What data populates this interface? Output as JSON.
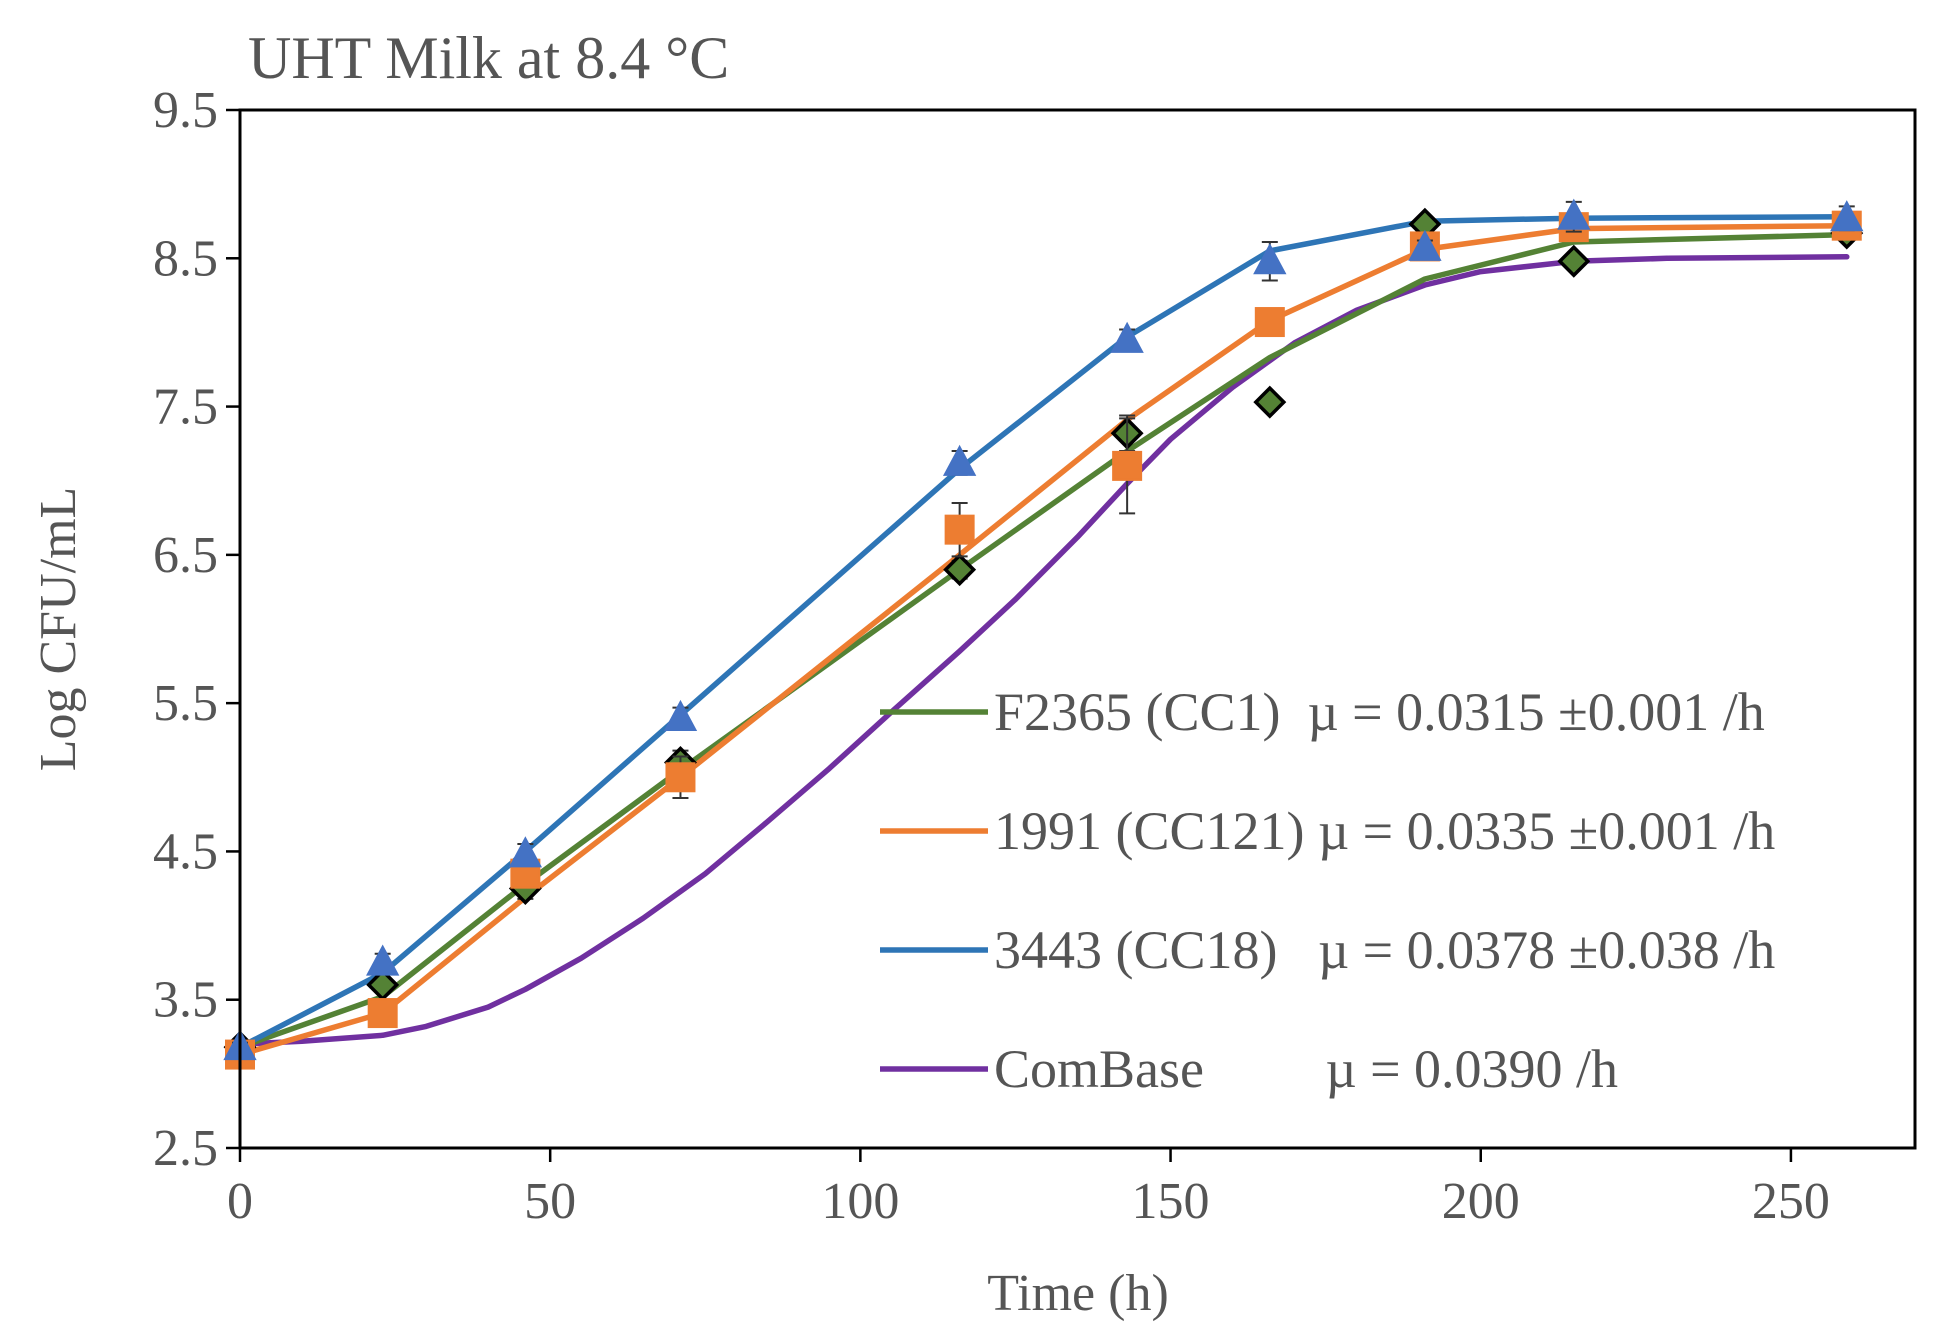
{
  "chart_data": {
    "type": "line",
    "title": "UHT Milk  at 8.4 °C",
    "xlabel": "Time (h)",
    "ylabel": "Log CFU/mL",
    "xlim": [
      0,
      270
    ],
    "ylim": [
      2.5,
      9.5
    ],
    "xticks": [
      "0",
      "50",
      "100",
      "150",
      "200",
      "250"
    ],
    "yticks": [
      "2.5",
      "3.5",
      "4.5",
      "5.5",
      "6.5",
      "7.5",
      "8.5",
      "9.5"
    ],
    "legend_position": "lower-right",
    "series": [
      {
        "name": "F2365 (CC1)",
        "legend_label": "F2365 (CC1)  µ = 0.0315 ±0.001 /h",
        "color": "#548235",
        "marker": "diamond",
        "marker_fill": "#548235",
        "marker_stroke": "#000000",
        "observed": {
          "x": [
            0,
            23,
            46,
            71,
            116,
            143,
            166,
            191,
            215,
            259
          ],
          "y": [
            3.18,
            3.6,
            4.25,
            5.1,
            6.4,
            7.32,
            7.53,
            8.73,
            8.48,
            8.67
          ],
          "err": [
            0.03,
            0.05,
            0.07,
            0.08,
            0.06,
            0.12,
            0.04,
            0.04,
            0.04,
            0.04
          ]
        },
        "fit": {
          "x": [
            0,
            23,
            46,
            71,
            116,
            143,
            166,
            191,
            215,
            259
          ],
          "y": [
            3.18,
            3.52,
            4.28,
            5.05,
            6.4,
            7.2,
            7.83,
            8.36,
            8.61,
            8.66
          ]
        }
      },
      {
        "name": "1991 (CC121)",
        "legend_label": "1991 (CC121) µ = 0.0335 ±0.001 /h",
        "color": "#ED7D31",
        "marker": "square",
        "marker_fill": "#ED7D31",
        "marker_stroke": "#ED7D31",
        "observed": {
          "x": [
            0,
            23,
            46,
            71,
            116,
            143,
            166,
            191,
            215,
            259
          ],
          "y": [
            3.13,
            3.41,
            4.35,
            5.0,
            6.67,
            7.1,
            8.07,
            8.58,
            8.71,
            8.72
          ],
          "err": [
            0.03,
            0.06,
            0.08,
            0.14,
            0.18,
            0.32,
            0.06,
            0.05,
            0.05,
            0.05
          ]
        },
        "fit": {
          "x": [
            0,
            23,
            46,
            71,
            116,
            143,
            166,
            191,
            215,
            259
          ],
          "y": [
            3.13,
            3.41,
            4.19,
            5.0,
            6.5,
            7.41,
            8.08,
            8.56,
            8.7,
            8.72
          ]
        }
      },
      {
        "name": "3443 (CC18)",
        "legend_label": "3443 (CC18)   µ = 0.0378 ±0.038 /h",
        "color": "#2E75B6",
        "marker": "triangle",
        "marker_fill": "#4472C4",
        "marker_stroke": "#4472C4",
        "observed": {
          "x": [
            0,
            23,
            46,
            71,
            116,
            143,
            166,
            191,
            215,
            259
          ],
          "y": [
            3.18,
            3.75,
            4.48,
            5.4,
            7.12,
            7.95,
            8.48,
            8.57,
            8.78,
            8.77
          ],
          "err": [
            0.03,
            0.06,
            0.07,
            0.07,
            0.08,
            0.07,
            0.13,
            0.05,
            0.1,
            0.08
          ]
        },
        "fit": {
          "x": [
            0,
            23,
            46,
            71,
            116,
            143,
            166,
            191,
            215,
            259
          ],
          "y": [
            3.18,
            3.68,
            4.5,
            5.42,
            7.08,
            7.97,
            8.55,
            8.75,
            8.77,
            8.78
          ]
        }
      },
      {
        "name": "ComBase",
        "legend_label": "ComBase         µ = 0.0390 /h",
        "color": "#7030A0",
        "marker": "none",
        "fit": {
          "x": [
            0,
            10,
            23,
            30,
            40,
            46,
            55,
            65,
            75,
            85,
            95,
            105,
            116,
            125,
            135,
            143,
            150,
            160,
            170,
            180,
            191,
            200,
            215,
            230,
            259
          ],
          "y": [
            3.2,
            3.22,
            3.26,
            3.32,
            3.45,
            3.57,
            3.78,
            4.05,
            4.35,
            4.7,
            5.06,
            5.44,
            5.85,
            6.2,
            6.62,
            6.98,
            7.28,
            7.63,
            7.93,
            8.15,
            8.32,
            8.41,
            8.48,
            8.5,
            8.51
          ]
        }
      }
    ]
  }
}
